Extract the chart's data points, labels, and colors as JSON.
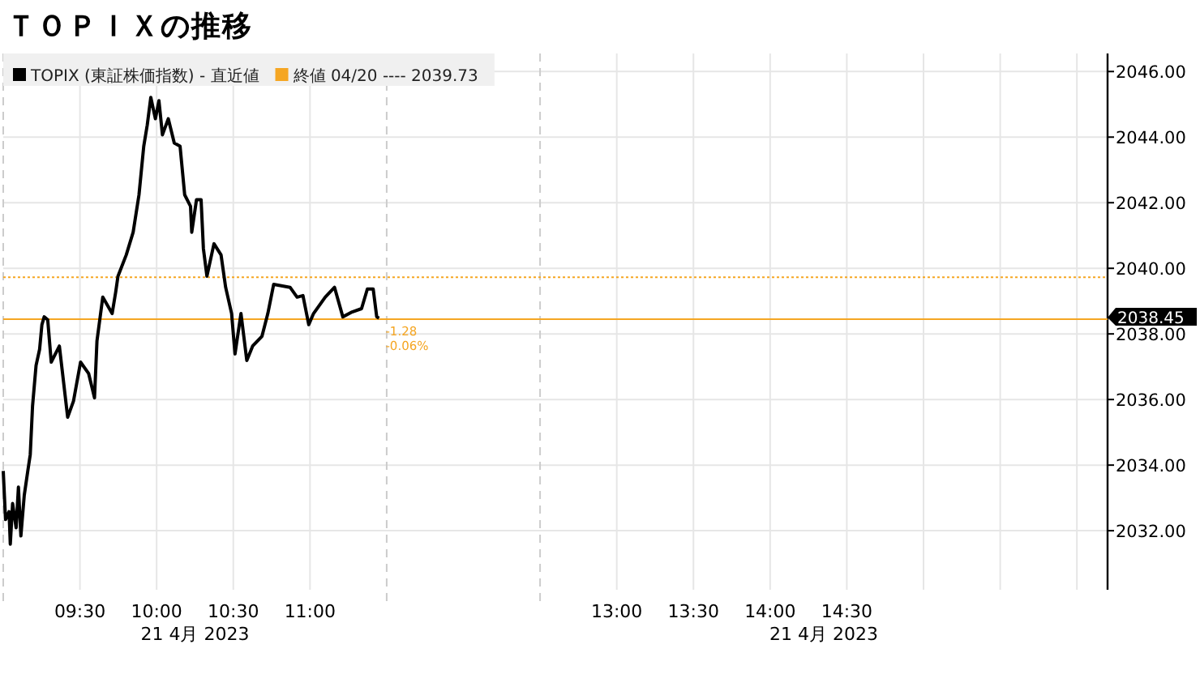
{
  "chart_data": {
    "type": "line",
    "title": "ＴＯＰＩＸの推移",
    "x": [
      9.0,
      9.015,
      9.038,
      9.046,
      9.061,
      9.084,
      9.099,
      9.115,
      9.137,
      9.16,
      9.176,
      9.191,
      9.214,
      9.237,
      9.252,
      9.267,
      9.29,
      9.313,
      9.366,
      9.42,
      9.458,
      9.504,
      9.557,
      9.595,
      9.611,
      9.649,
      9.71,
      9.733,
      9.748,
      9.802,
      9.847,
      9.885,
      9.916,
      9.939,
      9.962,
      9.992,
      10.015,
      10.038,
      10.076,
      10.115,
      10.153,
      10.183,
      10.221,
      10.229,
      10.26,
      10.29,
      10.305,
      10.328,
      10.374,
      10.42,
      10.45,
      10.489,
      10.511,
      10.55,
      10.588,
      10.626,
      10.687,
      10.725,
      10.763,
      10.87,
      10.916,
      10.954,
      10.992,
      11.023,
      11.099,
      11.16,
      11.214,
      11.275,
      11.336,
      11.374,
      11.412,
      11.435,
      11.45
    ],
    "series": [
      {
        "name": "TOPIX (東証株価指数) - 直近値",
        "color": "#000000",
        "values": [
          2033.82,
          2032.34,
          2032.58,
          2031.59,
          2032.83,
          2032.09,
          2033.33,
          2031.84,
          2033.08,
          2033.82,
          2034.32,
          2035.8,
          2037.04,
          2037.53,
          2038.28,
          2038.52,
          2038.43,
          2037.14,
          2037.63,
          2035.46,
          2035.95,
          2037.14,
          2036.79,
          2036.05,
          2037.78,
          2039.12,
          2038.62,
          2039.27,
          2039.76,
          2040.41,
          2041.1,
          2042.24,
          2043.72,
          2044.37,
          2045.21,
          2044.56,
          2045.11,
          2044.07,
          2044.56,
          2043.82,
          2043.72,
          2042.24,
          2041.89,
          2041.1,
          2042.09,
          2042.09,
          2040.6,
          2039.76,
          2040.75,
          2040.41,
          2039.42,
          2038.62,
          2037.39,
          2038.62,
          2037.19,
          2037.63,
          2037.93,
          2038.62,
          2039.51,
          2039.42,
          2039.12,
          2039.17,
          2038.28,
          2038.62,
          2039.12,
          2039.42,
          2038.52,
          2038.67,
          2038.77,
          2039.37,
          2039.37,
          2038.52,
          2038.48
        ]
      }
    ],
    "xlim": [
      9,
      16.2
    ],
    "xticks": [
      {
        "value": 9.5,
        "label": "09:30"
      },
      {
        "value": 10,
        "label": "10:00"
      },
      {
        "value": 10.5,
        "label": "10:30"
      },
      {
        "value": 11,
        "label": "11:00"
      },
      {
        "value": 13,
        "label": "13:00"
      },
      {
        "value": 13.5,
        "label": "13:30"
      },
      {
        "value": 14,
        "label": "14:00"
      },
      {
        "value": 14.5,
        "label": "14:30"
      },
      {
        "value": 15,
        "label": null
      },
      {
        "value": 15.5,
        "label": null
      },
      {
        "value": 16,
        "label": null
      }
    ],
    "ylim": [
      2030.2,
      2046.55
    ],
    "yticks": [
      {
        "value": 2032,
        "label": "2032.00"
      },
      {
        "value": 2034,
        "label": "2034.00"
      },
      {
        "value": 2036,
        "label": "2036.00"
      },
      {
        "value": 2038,
        "label": "2038.00"
      },
      {
        "value": 2040,
        "label": "2040.00"
      },
      {
        "value": 2042,
        "label": "2042.00"
      },
      {
        "value": 2044,
        "label": "2044.00"
      },
      {
        "value": 2046,
        "label": "2046.00"
      }
    ],
    "grid": true,
    "legend": "top left",
    "line_style": "solid",
    "marker": "none",
    "ref_lines": [
      {
        "axis": "x",
        "value": 9,
        "color": "#cccccc",
        "line_style": "dashed"
      },
      {
        "axis": "x",
        "value": 11.5,
        "color": "#cccccc",
        "line_style": "dashed"
      },
      {
        "axis": "x",
        "value": 12.5,
        "color": "#cccccc",
        "line_style": "dashed"
      },
      {
        "axis": "y",
        "value": 2039.73,
        "label": "終値 04/20 ---- 2039.73",
        "color": "#f5a623",
        "line_style": "dotted"
      },
      {
        "axis": "y",
        "value": 2038.45,
        "label": "2038.45",
        "color": "#f5a623",
        "line_style": "solid"
      }
    ],
    "annotations": [
      "21 4月 2023",
      "21 4月 2023",
      {
        "text": "-1.28",
        "x": 11.45,
        "y": 2038.45
      },
      {
        "text": "-0.06%",
        "x": 11.45,
        "y": 2038.45
      }
    ]
  }
}
